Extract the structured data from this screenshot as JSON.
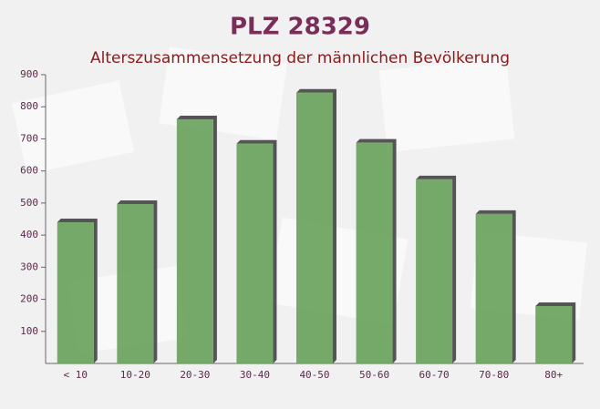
{
  "chart_data": {
    "type": "bar",
    "title": "PLZ 28329",
    "subtitle": "Alterszusammensetzung der männlichen Bevölkerung",
    "categories": [
      "< 10",
      "10-20",
      "20-30",
      "30-40",
      "40-50",
      "50-60",
      "60-70",
      "70-80",
      "80+"
    ],
    "values": [
      440,
      497,
      761,
      685,
      844,
      688,
      574,
      466,
      179
    ],
    "color": "#6aa35e",
    "ylim": [
      0,
      900
    ],
    "yticks": [
      100,
      200,
      300,
      400,
      500,
      600,
      700,
      800,
      900
    ]
  }
}
